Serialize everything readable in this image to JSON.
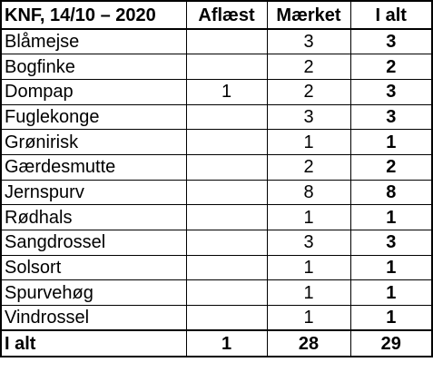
{
  "table": {
    "headers": {
      "name": "KNF, 14/10 – 2020",
      "read": "Aflæst",
      "marked": "Mærket",
      "total": "I alt"
    },
    "rows": [
      {
        "name": "Blåmejse",
        "read": "",
        "marked": "3",
        "total": "3"
      },
      {
        "name": "Bogfinke",
        "read": "",
        "marked": "2",
        "total": "2"
      },
      {
        "name": "Dompap",
        "read": "1",
        "marked": "2",
        "total": "3"
      },
      {
        "name": "Fuglekonge",
        "read": "",
        "marked": "3",
        "total": "3"
      },
      {
        "name": "Grønirisk",
        "read": "",
        "marked": "1",
        "total": "1"
      },
      {
        "name": "Gærdesmutte",
        "read": "",
        "marked": "2",
        "total": "2"
      },
      {
        "name": "Jernspurv",
        "read": "",
        "marked": "8",
        "total": "8"
      },
      {
        "name": "Rødhals",
        "read": "",
        "marked": "1",
        "total": "1"
      },
      {
        "name": "Sangdrossel",
        "read": "",
        "marked": "3",
        "total": "3"
      },
      {
        "name": "Solsort",
        "read": "",
        "marked": "1",
        "total": "1"
      },
      {
        "name": "Spurvehøg",
        "read": "",
        "marked": "1",
        "total": "1"
      },
      {
        "name": "Vindrossel",
        "read": "",
        "marked": "1",
        "total": "1"
      }
    ],
    "footer": {
      "name": "I alt",
      "read": "1",
      "marked": "28",
      "total": "29"
    }
  }
}
